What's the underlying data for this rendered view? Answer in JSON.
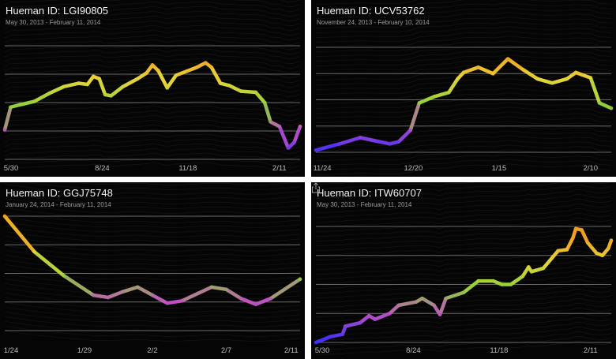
{
  "chart_data": [
    {
      "type": "line",
      "title": "Hueman ID: LGI90805",
      "subtitle": "May 30, 2013 - February 11, 2014",
      "x_ticks": [
        "5/30",
        "8/24",
        "11/18",
        "2/11"
      ],
      "ylim": [
        0,
        100
      ],
      "grid": true,
      "x": [
        0,
        0.02,
        0.05,
        0.1,
        0.15,
        0.2,
        0.25,
        0.28,
        0.3,
        0.32,
        0.34,
        0.36,
        0.4,
        0.45,
        0.48,
        0.5,
        0.52,
        0.55,
        0.58,
        0.62,
        0.65,
        0.68,
        0.7,
        0.73,
        0.76,
        0.8,
        0.85,
        0.88,
        0.9,
        0.93,
        0.96,
        0.98,
        1
      ],
      "values": [
        26,
        46,
        48,
        51,
        58,
        64,
        67,
        66,
        73,
        71,
        57,
        56,
        64,
        71,
        76,
        83,
        78,
        63,
        74,
        78,
        81,
        85,
        81,
        67,
        65,
        60,
        59,
        50,
        33,
        29,
        10,
        15,
        29
      ]
    },
    {
      "type": "line",
      "title": "Hueman ID: UCV53762",
      "subtitle": "November 24, 2013 - February 10, 2014",
      "x_ticks": [
        "11/24",
        "12/20",
        "1/15",
        "2/10"
      ],
      "ylim": [
        0,
        100
      ],
      "grid": true,
      "x": [
        0,
        0.08,
        0.15,
        0.2,
        0.25,
        0.28,
        0.32,
        0.35,
        0.4,
        0.45,
        0.48,
        0.5,
        0.55,
        0.6,
        0.65,
        0.7,
        0.75,
        0.8,
        0.85,
        0.88,
        0.9,
        0.93,
        0.96,
        1
      ],
      "values": [
        2,
        8,
        14,
        11,
        8,
        10,
        21,
        47,
        53,
        57,
        70,
        76,
        81,
        75,
        89,
        79,
        70,
        66,
        70,
        76,
        74,
        71,
        47,
        42
      ]
    },
    {
      "type": "line",
      "title": "Hueman ID: GGJ75748",
      "subtitle": "January 24, 2014 - February 11, 2014",
      "x_ticks": [
        "1/24",
        "1/29",
        "2/2",
        "2/7",
        "2/11"
      ],
      "ylim": [
        0,
        100
      ],
      "grid": true,
      "x": [
        0,
        0.1,
        0.2,
        0.3,
        0.35,
        0.4,
        0.45,
        0.5,
        0.55,
        0.6,
        0.7,
        0.75,
        0.8,
        0.85,
        0.9,
        1
      ],
      "values": [
        100,
        69,
        48,
        31,
        29,
        34,
        38,
        31,
        24,
        26,
        38,
        36,
        28,
        23,
        28,
        45
      ]
    },
    {
      "type": "line",
      "title": "Hueman ID: ITW60707",
      "subtitle": "May 30, 2013 - February 11, 2014",
      "x_ticks": [
        "5/30",
        "8/24",
        "11/18",
        "2/11"
      ],
      "ylim": [
        0,
        100
      ],
      "grid": true,
      "x": [
        0,
        0.05,
        0.09,
        0.1,
        0.15,
        0.18,
        0.2,
        0.25,
        0.28,
        0.34,
        0.36,
        0.4,
        0.42,
        0.44,
        0.5,
        0.55,
        0.6,
        0.63,
        0.66,
        0.7,
        0.72,
        0.73,
        0.77,
        0.8,
        0.82,
        0.85,
        0.87,
        0.88,
        0.9,
        0.92,
        0.95,
        0.97,
        0.99,
        1
      ],
      "values": [
        0,
        5,
        7,
        14,
        17,
        23,
        20,
        25,
        32,
        35,
        38,
        32,
        24,
        38,
        43,
        53,
        53,
        50,
        50,
        57,
        65,
        61,
        64,
        73,
        79,
        80,
        90,
        98,
        97,
        86,
        77,
        75,
        81,
        88
      ]
    }
  ],
  "colors": {
    "low": "#3a2cff",
    "low_mid": "#c24fc4",
    "mid": "#8ccf3a",
    "high_mid": "#e6d43a",
    "high": "#f0a021",
    "background": "#050505",
    "grid": "#8a8a8a"
  },
  "icons": {
    "share": "share-icon"
  }
}
